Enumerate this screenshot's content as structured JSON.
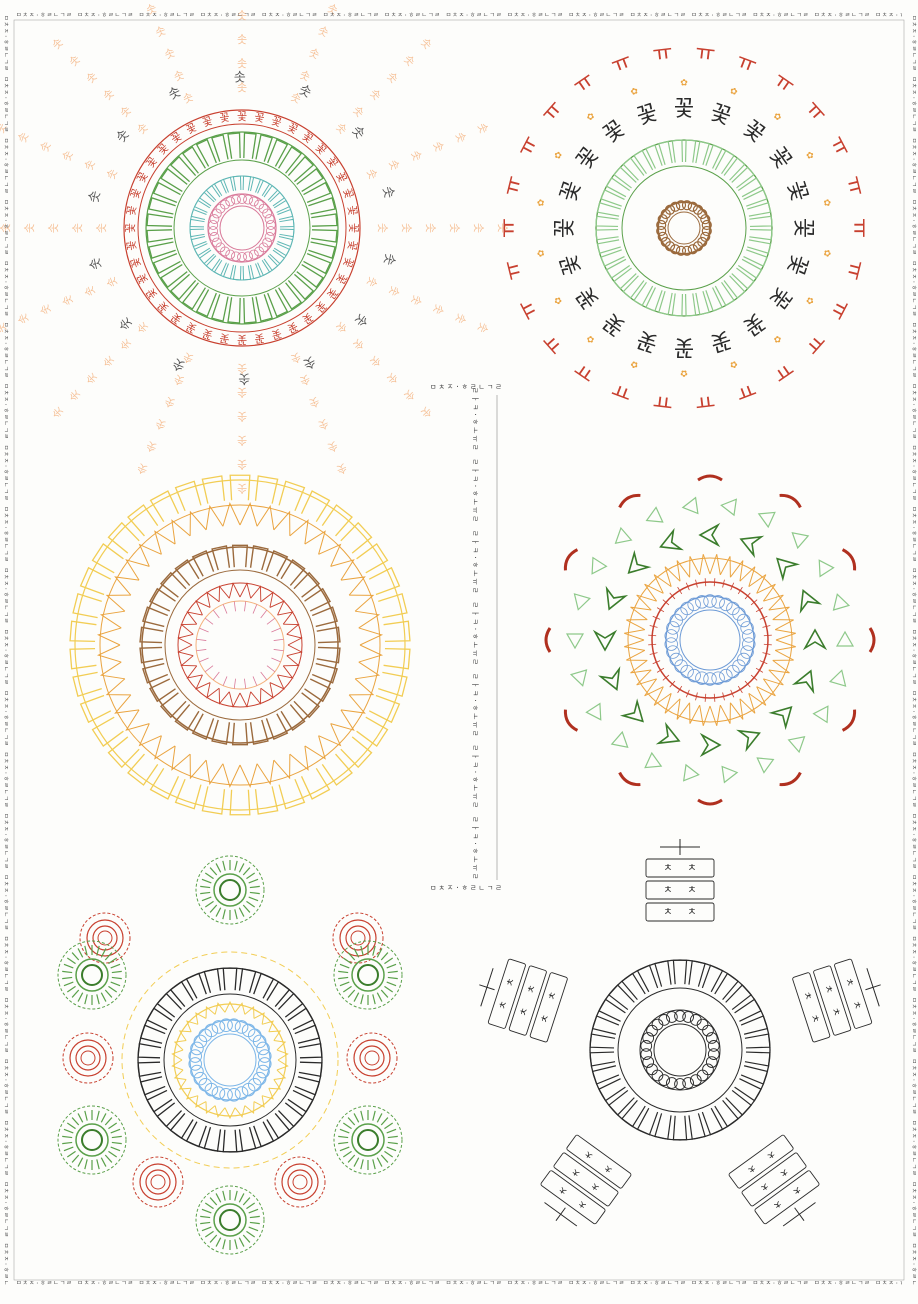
{
  "poster": {
    "border_pattern": "ㅁㅊㅈ·ㅎㄹㄴㄱㄹ",
    "center_header": "ㅁㅊㅈ·ㅎㄹㄴㄱㄹ",
    "center_footer": "ㅁㅊㅈ·ㅎㄹㄴㄱㄹ",
    "center_vertical": "ㄹㅏㅋ·ㅎㅗㅠㄹ ㄹㅏㅋ·ㅎㅗㅠㄹ ㄹㅏㅋ·ㅎㅗㅠㄹ ㄹㅏㅋ·ㅎㅗㅠㄹ ㄹㅏㅋ·ㅎㅗㅠㄹ ㄹㅏㅋ·ㅎㅗㅠㄹ ㄹㅏㅋ·ㅎㅗㅠㄹ",
    "glyphs": {
      "sun_ring": "꽃",
      "sun_outer": "꽃",
      "sun_ray": "솟",
      "mandala2_inner": "꽃",
      "mandala2_outer": "ㅠ",
      "mandala6_block": "ㅊ"
    }
  },
  "colors": {
    "red": "#c8402f",
    "green": "#5aa04a",
    "darkgreen": "#3b7d2c",
    "lightgreen": "#8ec98a",
    "teal": "#5fb7b5",
    "pink": "#d97a9a",
    "peach": "#f4b27e",
    "yellow": "#f2cd54",
    "orange": "#eaa440",
    "brown": "#9b6a3d",
    "blue": "#6c9ad6",
    "lightblue": "#7cb6e8",
    "gray": "#555555",
    "black": "#2a2a2a",
    "darkred": "#b0301f"
  }
}
